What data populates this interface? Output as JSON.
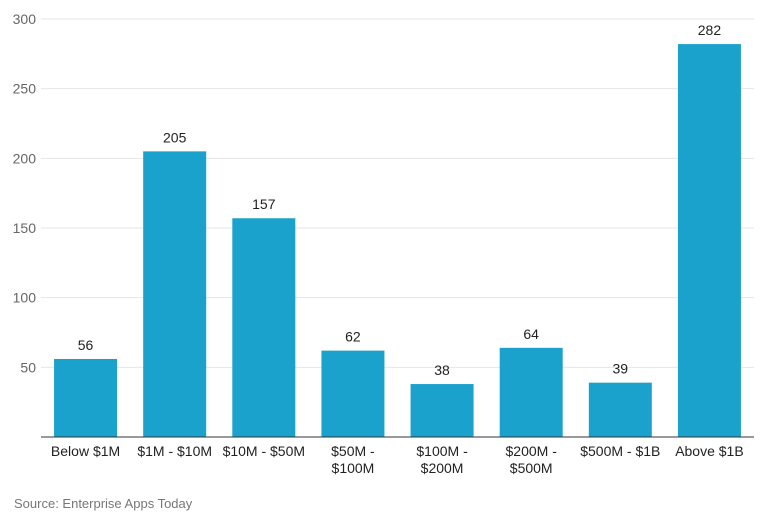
{
  "chart_data": {
    "type": "bar",
    "categories": [
      "Below $1M",
      "$1M - $10M",
      "$10M - $50M",
      "$50M - $100M",
      "$100M - $200M",
      "$200M - $500M",
      "$500M - $1B",
      "Above $1B"
    ],
    "category_lines": [
      [
        "Below $1M"
      ],
      [
        "$1M - $10M"
      ],
      [
        "$10M - $50M"
      ],
      [
        "$50M -",
        "$100M"
      ],
      [
        "$100M -",
        "$200M"
      ],
      [
        "$200M -",
        "$500M"
      ],
      [
        "$500M - $1B"
      ],
      [
        "Above $1B"
      ]
    ],
    "values": [
      56,
      205,
      157,
      62,
      38,
      64,
      39,
      282
    ],
    "data_labels": [
      "56",
      "205",
      "157",
      "62",
      "38",
      "64",
      "39",
      "282"
    ],
    "ylim": [
      0,
      300
    ],
    "yticks": [
      50,
      100,
      150,
      200,
      250,
      300
    ],
    "ytick_labels": [
      "50",
      "100",
      "150",
      "200",
      "250",
      "300"
    ],
    "grid": true,
    "bar_color": "#1aa1cc",
    "title": "",
    "xlabel": "",
    "ylabel": ""
  },
  "source": "Source: Enterprise Apps Today"
}
